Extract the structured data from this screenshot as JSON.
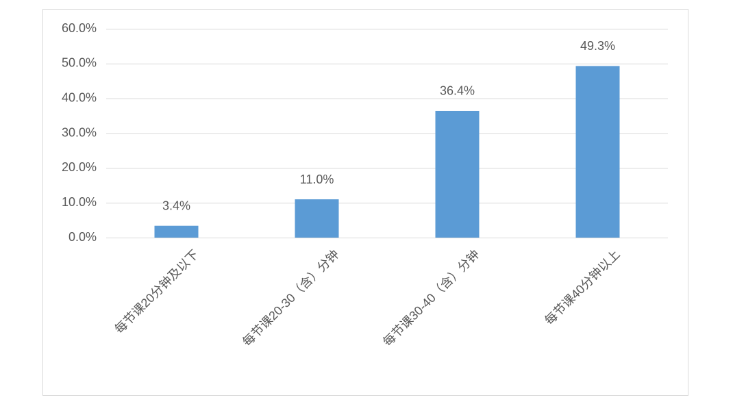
{
  "chart_data": {
    "type": "bar",
    "categories": [
      "每节课20分钟及以下",
      "每节课20-30（含）分钟",
      "每节课30-40（含）分钟",
      "每节课40分钟以上"
    ],
    "values": [
      3.4,
      11.0,
      36.4,
      49.3
    ],
    "value_labels": [
      "3.4%",
      "11.0%",
      "36.4%",
      "49.3%"
    ],
    "color": "#5b9bd5",
    "ylim": [
      0,
      60
    ],
    "yticks": [
      {
        "value": 0,
        "label": "0.0%"
      },
      {
        "value": 10,
        "label": "10.0%"
      },
      {
        "value": 20,
        "label": "20.0%"
      },
      {
        "value": 30,
        "label": "30.0%"
      },
      {
        "value": 40,
        "label": "40.0%"
      },
      {
        "value": 50,
        "label": "50.0%"
      },
      {
        "value": 60,
        "label": "60.0%"
      }
    ],
    "grid": true
  }
}
